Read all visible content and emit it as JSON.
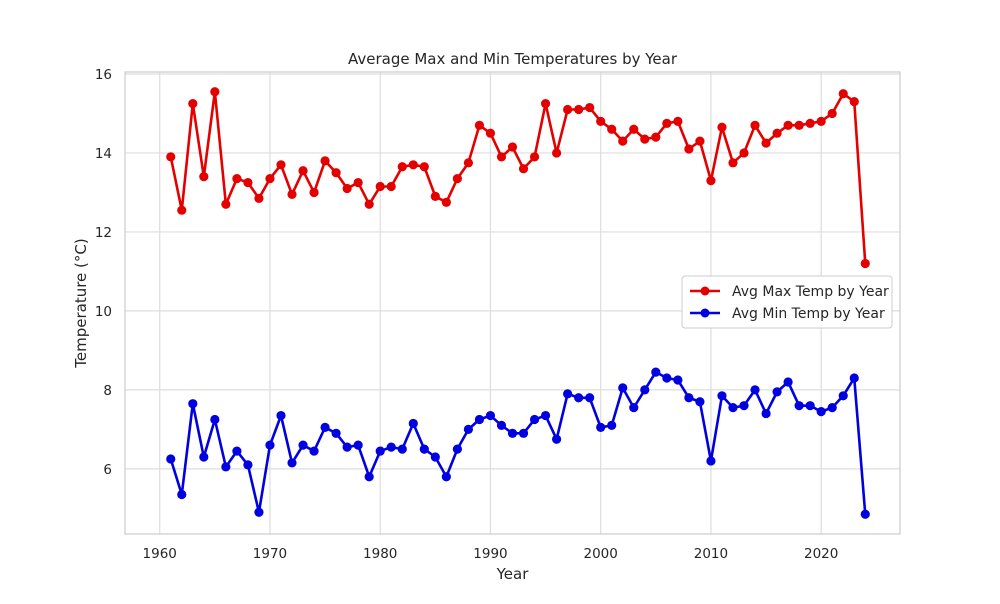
{
  "chart_data": {
    "type": "line",
    "title": "Average Max and Min Temperatures by Year",
    "xlabel": "Year",
    "ylabel": "Temperature (°C)",
    "xlim": [
      1956.85,
      2027.15
    ],
    "ylim": [
      4.35,
      16.05
    ],
    "xticks": [
      1960,
      1970,
      1980,
      1990,
      2000,
      2010,
      2020
    ],
    "yticks": [
      6,
      8,
      10,
      12,
      14,
      16
    ],
    "grid": true,
    "legend_position": "right",
    "x": [
      1961,
      1962,
      1963,
      1964,
      1965,
      1966,
      1967,
      1968,
      1969,
      1970,
      1971,
      1972,
      1973,
      1974,
      1975,
      1976,
      1977,
      1978,
      1979,
      1980,
      1981,
      1982,
      1983,
      1984,
      1985,
      1986,
      1987,
      1988,
      1989,
      1990,
      1991,
      1992,
      1993,
      1994,
      1995,
      1996,
      1997,
      1998,
      1999,
      2000,
      2001,
      2002,
      2003,
      2004,
      2005,
      2006,
      2007,
      2008,
      2009,
      2010,
      2011,
      2012,
      2013,
      2014,
      2015,
      2016,
      2017,
      2018,
      2019,
      2020,
      2021,
      2022,
      2023,
      2024
    ],
    "series": [
      {
        "name": "Avg Max Temp by Year",
        "color": "#e50000",
        "values": [
          13.9,
          12.55,
          15.25,
          13.4,
          15.55,
          12.7,
          13.35,
          13.25,
          12.85,
          13.35,
          13.7,
          12.95,
          13.55,
          13.0,
          13.8,
          13.5,
          13.1,
          13.25,
          12.7,
          13.15,
          13.15,
          13.65,
          13.7,
          13.65,
          12.9,
          12.75,
          13.35,
          13.75,
          14.7,
          14.5,
          13.9,
          14.15,
          13.6,
          13.9,
          15.25,
          14.0,
          15.1,
          15.1,
          15.15,
          14.8,
          14.6,
          14.3,
          14.6,
          14.35,
          14.4,
          14.75,
          14.8,
          14.1,
          14.3,
          13.3,
          14.65,
          13.75,
          14.0,
          14.7,
          14.25,
          14.5,
          14.7,
          14.7,
          14.75,
          14.8,
          15.0,
          15.5,
          15.3,
          11.2
        ]
      },
      {
        "name": "Avg Min Temp by Year",
        "color": "#0000e0",
        "values": [
          6.25,
          5.35,
          7.65,
          6.3,
          7.25,
          6.05,
          6.45,
          6.1,
          4.9,
          6.6,
          7.35,
          6.15,
          6.6,
          6.45,
          7.05,
          6.9,
          6.55,
          6.6,
          5.8,
          6.45,
          6.55,
          6.5,
          7.15,
          6.5,
          6.3,
          5.8,
          6.5,
          7.0,
          7.25,
          7.35,
          7.1,
          6.9,
          6.9,
          7.25,
          7.35,
          6.75,
          7.9,
          7.8,
          7.8,
          7.05,
          7.1,
          8.05,
          7.55,
          8.0,
          8.45,
          8.3,
          8.25,
          7.8,
          7.7,
          6.2,
          7.85,
          7.55,
          7.6,
          8.0,
          7.4,
          7.95,
          8.2,
          7.6,
          7.6,
          7.45,
          7.55,
          7.85,
          8.3,
          4.85
        ]
      }
    ]
  }
}
